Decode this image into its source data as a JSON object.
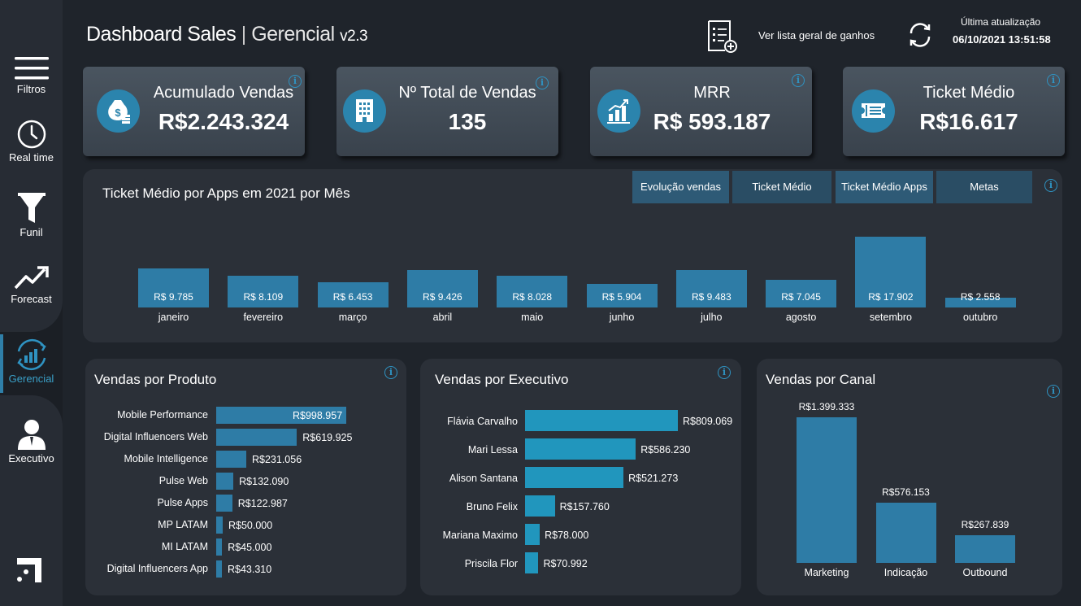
{
  "sidebar": {
    "items": [
      {
        "label": "Filtros",
        "icon": "hamburger-menu-icon"
      },
      {
        "label": "Real time",
        "icon": "clock-icon"
      },
      {
        "label": "Funil",
        "icon": "funnel-icon"
      },
      {
        "label": "Forecast",
        "icon": "trend-up-icon"
      },
      {
        "label": "Gerencial",
        "icon": "chart-refresh-icon"
      },
      {
        "label": "Executivo",
        "icon": "businessman-icon"
      }
    ],
    "active": "Gerencial",
    "logo": "brand-logo-icon"
  },
  "header": {
    "title_main": "Dashboard Sales",
    "title_sep": "|",
    "title_sub": "Gerencial",
    "title_version": "v2.3",
    "list_link": "Ver lista geral de ganhos",
    "update_label": "Última atualização",
    "update_value": "06/10/2021 13:51:58"
  },
  "kpis": [
    {
      "label": "Acumulado Vendas",
      "value": "R$2.243.324",
      "icon": "money-bag-icon"
    },
    {
      "label": "Nº Total de Vendas",
      "value": "135",
      "icon": "building-icon"
    },
    {
      "label": "MRR",
      "value": "R$ 593.187",
      "icon": "growth-chart-icon"
    },
    {
      "label": "Ticket Médio",
      "value": "R$16.617",
      "icon": "ticket-icon"
    }
  ],
  "monthly": {
    "title": "Ticket Médio por Apps em 2021 por Mês",
    "tabs": [
      "Evolução vendas",
      "Ticket Médio",
      "Ticket Médio Apps",
      "Metas"
    ],
    "chart_data": {
      "type": "bar",
      "categories": [
        "janeiro",
        "fevereiro",
        "março",
        "abril",
        "maio",
        "junho",
        "julho",
        "agosto",
        "setembro",
        "outubro"
      ],
      "values": [
        9785,
        8109,
        6453,
        9426,
        8028,
        5904,
        9483,
        7045,
        17902,
        2558
      ],
      "labels": [
        "R$ 9.785",
        "R$ 8.109",
        "R$ 6.453",
        "R$ 9.426",
        "R$ 8.028",
        "R$ 5.904",
        "R$ 9.483",
        "R$ 7.045",
        "R$ 17.902",
        "R$ 2.558"
      ]
    }
  },
  "produto": {
    "title": "Vendas por Produto",
    "chart_data": {
      "type": "bar",
      "orientation": "horizontal",
      "categories": [
        "Mobile Performance",
        "Digital Influencers Web",
        "Mobile Intelligence",
        "Pulse Web",
        "Pulse Apps",
        "MP LATAM",
        "MI LATAM",
        "Digital Influencers App"
      ],
      "values": [
        998957,
        619925,
        231056,
        132090,
        122987,
        50000,
        45000,
        43310
      ],
      "labels": [
        "R$998.957",
        "R$619.925",
        "R$231.056",
        "R$132.090",
        "R$122.987",
        "R$50.000",
        "R$45.000",
        "R$43.310"
      ]
    }
  },
  "executivo": {
    "title": "Vendas por Executivo",
    "chart_data": {
      "type": "bar",
      "orientation": "horizontal",
      "categories": [
        "Flávia Carvalho",
        "Mari Lessa",
        "Alison Santana",
        "Bruno Felix",
        "Mariana Maximo",
        "Priscila Flor"
      ],
      "values": [
        809069,
        586230,
        521273,
        157760,
        78000,
        70992
      ],
      "labels": [
        "R$809.069",
        "R$586.230",
        "R$521.273",
        "R$157.760",
        "R$78.000",
        "R$70.992"
      ]
    }
  },
  "canal": {
    "title": "Vendas por Canal",
    "chart_data": {
      "type": "bar",
      "categories": [
        "Marketing",
        "Indicação",
        "Outbound"
      ],
      "values": [
        1399333,
        576153,
        267839
      ],
      "labels": [
        "R$1.399.333",
        "R$576.153",
        "R$267.839"
      ]
    }
  },
  "colors": {
    "accent": "#2e7ca6",
    "teal": "#2196bd",
    "info": "#2f93c2",
    "panel": "#2b3038",
    "background": "#1f242b"
  }
}
